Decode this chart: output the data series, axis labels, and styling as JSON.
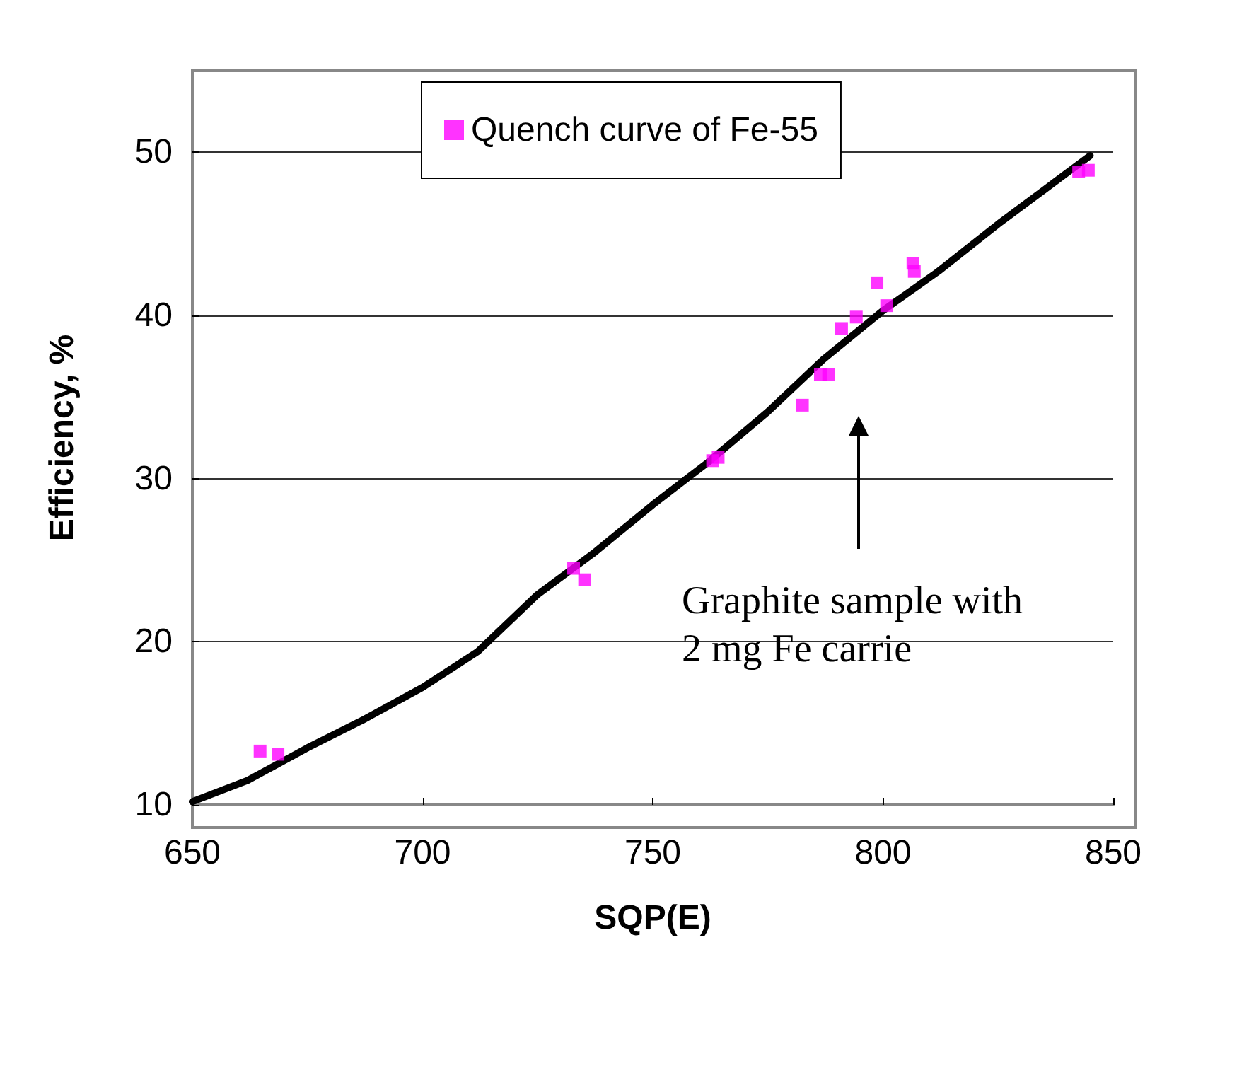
{
  "chart_data": {
    "type": "scatter",
    "xlabel": "SQP(E)",
    "ylabel": "Efficiency, %",
    "xlim": [
      650,
      850
    ],
    "xticks": [
      650,
      700,
      750,
      800,
      850
    ],
    "ylim": [
      10,
      55
    ],
    "yticks": [
      10,
      20,
      30,
      40,
      50
    ],
    "grid": "y",
    "legend": "top",
    "marker": "square",
    "series": [
      {
        "name": "Quench curve of Fe-55",
        "color": "#ff00ff",
        "x": [
          664.7,
          668.6,
          732.8,
          735.2,
          763.0,
          764.2,
          782.5,
          786.4,
          788.2,
          791.0,
          794.2,
          798.7,
          800.8,
          806.5,
          806.8,
          842.5,
          844.6
        ],
        "values": [
          13.3,
          13.1,
          24.5,
          23.8,
          31.1,
          31.3,
          34.5,
          36.4,
          36.4,
          39.2,
          39.9,
          42.0,
          40.6,
          43.2,
          42.7,
          48.8,
          48.9
        ]
      },
      {
        "color": "#000000",
        "type": "line",
        "marker": "none",
        "x": [
          650,
          662,
          675,
          687,
          700,
          712,
          725,
          737,
          750,
          762,
          775,
          787,
          800,
          812,
          825,
          835,
          845
        ],
        "values": [
          10.2,
          11.5,
          13.5,
          15.2,
          17.2,
          19.4,
          22.9,
          25.4,
          28.4,
          31.0,
          34.1,
          37.3,
          40.3,
          42.7,
          45.6,
          47.7,
          49.8
        ]
      }
    ],
    "annotations": [
      "Graphite sample with\n2 mg Fe carrie"
    ]
  }
}
